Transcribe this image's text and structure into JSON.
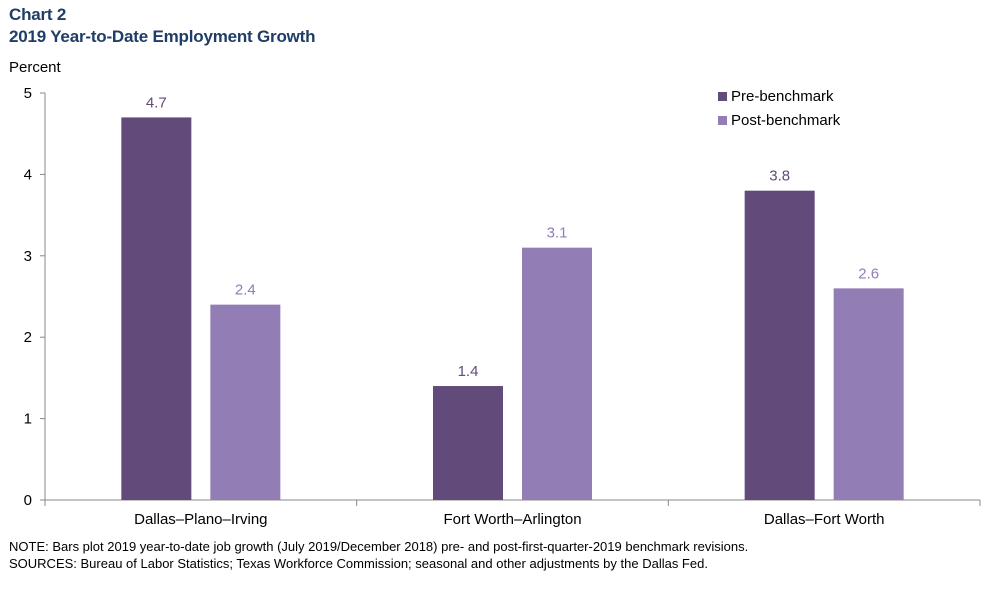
{
  "header": {
    "chart_number": "Chart 2",
    "title": "2019 Year-to-Date Employment Growth"
  },
  "notes": {
    "note": "NOTE: Bars plot 2019 year-to-date job growth (July 2019/December 2018) pre- and post-first-quarter-2019 benchmark revisions.",
    "sources": "SOURCES: Bureau of Labor Statistics; Texas Workforce Commission; seasonal and other adjustments by the Dallas Fed."
  },
  "colors": {
    "pre": "#624a7a",
    "post": "#927db5",
    "label_pre": "#624a7a",
    "label_post": "#927db5",
    "title": "#1f3d66"
  },
  "chart_data": {
    "type": "bar",
    "ylabel": "Percent",
    "ylim": [
      0,
      5
    ],
    "yticks": [
      "0",
      "1",
      "2",
      "3",
      "4",
      "5"
    ],
    "categories": [
      "Dallas–Plano–Irving",
      "Fort Worth–Arlington",
      "Dallas–Fort Worth"
    ],
    "series": [
      {
        "name": "Pre-benchmark",
        "values": [
          4.7,
          1.4,
          3.8
        ],
        "labels": [
          "4.7",
          "1.4",
          "3.8"
        ]
      },
      {
        "name": "Post-benchmark",
        "values": [
          2.4,
          3.1,
          2.6
        ],
        "labels": [
          "2.4",
          "3.1",
          "2.6"
        ]
      }
    ],
    "legend_position": "top-right",
    "grid": false
  }
}
